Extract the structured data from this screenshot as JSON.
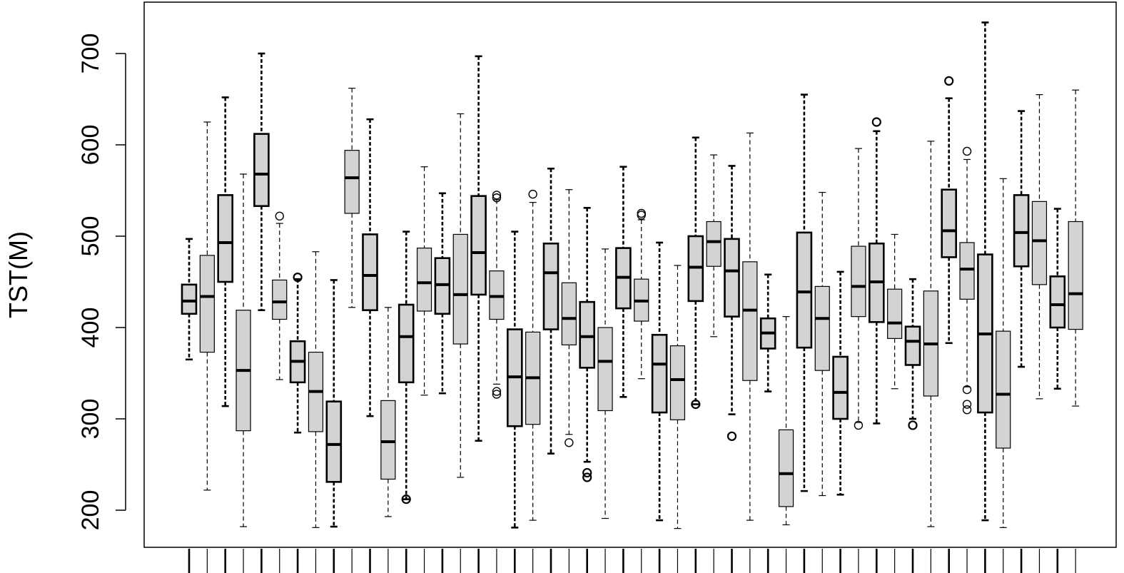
{
  "chart_data": {
    "type": "boxplot",
    "ylabel": "TST(M)",
    "xlabel": "",
    "title": "",
    "ylim": [
      150,
      745
    ],
    "yticks": [
      200,
      300,
      400,
      500,
      600,
      700
    ],
    "grid": false,
    "legend": "none",
    "colors": {
      "box_fill": "#d3d3d3",
      "line": "#000000",
      "background": "#ffffff"
    },
    "boxes": [
      {
        "min": 365,
        "q1": 415,
        "median": 429,
        "q3": 447,
        "max": 497,
        "outliers": []
      },
      {
        "min": 222,
        "q1": 373,
        "median": 434,
        "q3": 479,
        "max": 625,
        "outliers": []
      },
      {
        "min": 314,
        "q1": 450,
        "median": 493,
        "q3": 545,
        "max": 652,
        "outliers": []
      },
      {
        "min": 182,
        "q1": 287,
        "median": 353,
        "q3": 419,
        "max": 568,
        "outliers": []
      },
      {
        "min": 419,
        "q1": 533,
        "median": 568,
        "q3": 612,
        "max": 700,
        "outliers": []
      },
      {
        "min": 343,
        "q1": 409,
        "median": 428,
        "q3": 452,
        "max": 514,
        "outliers": [
          522
        ]
      },
      {
        "min": 285,
        "q1": 340,
        "median": 363,
        "q3": 385,
        "max": 453,
        "outliers": [
          455
        ]
      },
      {
        "min": 181,
        "q1": 286,
        "median": 330,
        "q3": 373,
        "max": 483,
        "outliers": []
      },
      {
        "min": 182,
        "q1": 231,
        "median": 272,
        "q3": 319,
        "max": 452,
        "outliers": []
      },
      {
        "min": 422,
        "q1": 525,
        "median": 564,
        "q3": 594,
        "max": 662,
        "outliers": []
      },
      {
        "min": 303,
        "q1": 419,
        "median": 457,
        "q3": 502,
        "max": 628,
        "outliers": []
      },
      {
        "min": 193,
        "q1": 234,
        "median": 275,
        "q3": 320,
        "max": 422,
        "outliers": []
      },
      {
        "min": 212,
        "q1": 340,
        "median": 390,
        "q3": 425,
        "max": 505,
        "outliers": [
          212
        ]
      },
      {
        "min": 326,
        "q1": 418,
        "median": 449,
        "q3": 487,
        "max": 576,
        "outliers": []
      },
      {
        "min": 328,
        "q1": 415,
        "median": 447,
        "q3": 476,
        "max": 547,
        "outliers": []
      },
      {
        "min": 236,
        "q1": 382,
        "median": 436,
        "q3": 502,
        "max": 634,
        "outliers": []
      },
      {
        "min": 276,
        "q1": 436,
        "median": 482,
        "q3": 544,
        "max": 697,
        "outliers": []
      },
      {
        "min": 338,
        "q1": 409,
        "median": 434,
        "q3": 462,
        "max": 540,
        "outliers": [
          330,
          327,
          545,
          542
        ]
      },
      {
        "min": 181,
        "q1": 292,
        "median": 346,
        "q3": 398,
        "max": 505,
        "outliers": []
      },
      {
        "min": 189,
        "q1": 294,
        "median": 345,
        "q3": 395,
        "max": 537,
        "outliers": [
          546
        ]
      },
      {
        "min": 262,
        "q1": 398,
        "median": 460,
        "q3": 492,
        "max": 574,
        "outliers": []
      },
      {
        "min": 283,
        "q1": 381,
        "median": 410,
        "q3": 449,
        "max": 551,
        "outliers": [
          274
        ]
      },
      {
        "min": 253,
        "q1": 356,
        "median": 390,
        "q3": 428,
        "max": 531,
        "outliers": [
          236,
          241
        ]
      },
      {
        "min": 191,
        "q1": 309,
        "median": 363,
        "q3": 400,
        "max": 486,
        "outliers": []
      },
      {
        "min": 324,
        "q1": 421,
        "median": 455,
        "q3": 487,
        "max": 576,
        "outliers": []
      },
      {
        "min": 344,
        "q1": 407,
        "median": 429,
        "q3": 453,
        "max": 518,
        "outliers": [
          523,
          525
        ]
      },
      {
        "min": 189,
        "q1": 307,
        "median": 360,
        "q3": 392,
        "max": 493,
        "outliers": []
      },
      {
        "min": 180,
        "q1": 299,
        "median": 343,
        "q3": 380,
        "max": 468,
        "outliers": []
      },
      {
        "min": 316,
        "q1": 429,
        "median": 466,
        "q3": 500,
        "max": 608,
        "outliers": [
          316
        ]
      },
      {
        "min": 390,
        "q1": 467,
        "median": 494,
        "q3": 516,
        "max": 589,
        "outliers": []
      },
      {
        "min": 305,
        "q1": 412,
        "median": 462,
        "q3": 497,
        "max": 577,
        "outliers": [
          281
        ]
      },
      {
        "min": 189,
        "q1": 342,
        "median": 419,
        "q3": 472,
        "max": 613,
        "outliers": []
      },
      {
        "min": 330,
        "q1": 377,
        "median": 394,
        "q3": 410,
        "max": 458,
        "outliers": []
      },
      {
        "min": 184,
        "q1": 204,
        "median": 240,
        "q3": 288,
        "max": 412,
        "outliers": []
      },
      {
        "min": 221,
        "q1": 378,
        "median": 439,
        "q3": 504,
        "max": 655,
        "outliers": []
      },
      {
        "min": 216,
        "q1": 353,
        "median": 410,
        "q3": 445,
        "max": 548,
        "outliers": []
      },
      {
        "min": 217,
        "q1": 300,
        "median": 329,
        "q3": 368,
        "max": 461,
        "outliers": []
      },
      {
        "min": 296,
        "q1": 412,
        "median": 445,
        "q3": 489,
        "max": 596,
        "outliers": [
          293
        ]
      },
      {
        "min": 295,
        "q1": 406,
        "median": 450,
        "q3": 492,
        "max": 615,
        "outliers": [
          625
        ]
      },
      {
        "min": 333,
        "q1": 388,
        "median": 405,
        "q3": 442,
        "max": 502,
        "outliers": []
      },
      {
        "min": 300,
        "q1": 359,
        "median": 385,
        "q3": 401,
        "max": 453,
        "outliers": [
          293
        ]
      },
      {
        "min": 182,
        "q1": 325,
        "median": 382,
        "q3": 440,
        "max": 604,
        "outliers": []
      },
      {
        "min": 383,
        "q1": 477,
        "median": 506,
        "q3": 551,
        "max": 651,
        "outliers": [
          670
        ]
      },
      {
        "min": 335,
        "q1": 431,
        "median": 464,
        "q3": 493,
        "max": 584,
        "outliers": [
          332,
          310,
          316,
          593
        ]
      },
      {
        "min": 189,
        "q1": 307,
        "median": 393,
        "q3": 480,
        "max": 734,
        "outliers": []
      },
      {
        "min": 181,
        "q1": 268,
        "median": 327,
        "q3": 396,
        "max": 563,
        "outliers": []
      },
      {
        "min": 357,
        "q1": 467,
        "median": 504,
        "q3": 545,
        "max": 637,
        "outliers": []
      },
      {
        "min": 322,
        "q1": 447,
        "median": 495,
        "q3": 538,
        "max": 655,
        "outliers": []
      },
      {
        "min": 333,
        "q1": 400,
        "median": 425,
        "q3": 456,
        "max": 530,
        "outliers": []
      },
      {
        "min": 314,
        "q1": 398,
        "median": 437,
        "q3": 516,
        "max": 660,
        "outliers": []
      }
    ]
  }
}
